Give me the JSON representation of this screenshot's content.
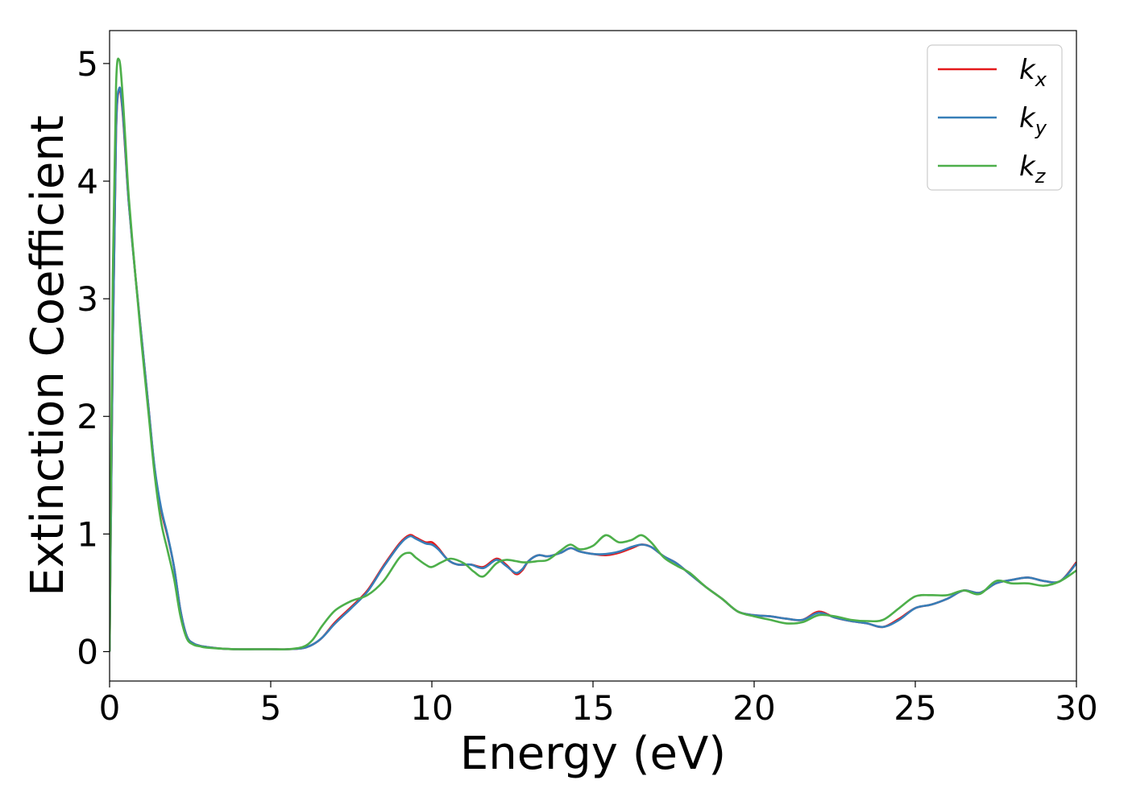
{
  "chart_data": {
    "type": "line",
    "xlabel": "Energy (eV)",
    "ylabel": "Extinction Coefficient",
    "xlim": [
      0,
      30
    ],
    "ylim": [
      -0.25,
      5.28
    ],
    "xticks": [
      0,
      5,
      10,
      15,
      20,
      25,
      30
    ],
    "yticks": [
      0,
      1,
      2,
      3,
      4,
      5
    ],
    "grid": false,
    "legend_position": "top-right",
    "series": [
      {
        "name": "k",
        "subscript": "x",
        "color": "#e41a1c",
        "x": [
          0,
          0.1,
          0.2,
          0.3,
          0.4,
          0.5,
          0.6,
          0.8,
          1.0,
          1.2,
          1.4,
          1.6,
          1.8,
          2.0,
          2.2,
          2.4,
          2.6,
          2.8,
          3.0,
          3.5,
          4,
          4.5,
          5,
          5.5,
          6,
          6.3,
          6.6,
          7,
          7.5,
          8,
          8.5,
          9,
          9.3,
          9.5,
          9.8,
          10,
          10.2,
          10.5,
          10.8,
          11.2,
          11.6,
          12,
          12.3,
          12.6,
          12.8,
          13,
          13.3,
          13.6,
          14,
          14.3,
          14.6,
          15,
          15.4,
          15.8,
          16.2,
          16.5,
          16.8,
          17.2,
          17.6,
          18,
          18.5,
          19,
          19.5,
          20,
          20.5,
          21,
          21.5,
          22,
          22.5,
          23,
          23.5,
          24,
          24.5,
          25,
          25.5,
          26,
          26.5,
          27,
          27.5,
          28,
          28.5,
          29,
          29.5,
          30
        ],
        "values": [
          0,
          2.6,
          4.4,
          4.78,
          4.6,
          4.2,
          3.8,
          3.2,
          2.65,
          2.1,
          1.55,
          1.2,
          0.98,
          0.72,
          0.35,
          0.13,
          0.07,
          0.05,
          0.04,
          0.025,
          0.02,
          0.02,
          0.02,
          0.02,
          0.03,
          0.06,
          0.12,
          0.25,
          0.38,
          0.52,
          0.73,
          0.92,
          0.99,
          0.97,
          0.93,
          0.93,
          0.88,
          0.78,
          0.74,
          0.74,
          0.72,
          0.79,
          0.74,
          0.66,
          0.69,
          0.77,
          0.82,
          0.81,
          0.84,
          0.88,
          0.85,
          0.83,
          0.82,
          0.84,
          0.88,
          0.91,
          0.89,
          0.81,
          0.75,
          0.66,
          0.55,
          0.45,
          0.34,
          0.31,
          0.3,
          0.28,
          0.27,
          0.34,
          0.29,
          0.26,
          0.24,
          0.21,
          0.28,
          0.37,
          0.4,
          0.45,
          0.52,
          0.5,
          0.58,
          0.61,
          0.63,
          0.6,
          0.6,
          0.76
        ]
      },
      {
        "name": "k",
        "subscript": "y",
        "color": "#377eb8",
        "x": [
          0,
          0.1,
          0.2,
          0.3,
          0.4,
          0.5,
          0.6,
          0.8,
          1.0,
          1.2,
          1.4,
          1.6,
          1.8,
          2.0,
          2.2,
          2.4,
          2.6,
          2.8,
          3.0,
          3.5,
          4,
          4.5,
          5,
          5.5,
          6,
          6.3,
          6.6,
          7,
          7.5,
          8,
          8.5,
          9,
          9.3,
          9.5,
          9.8,
          10,
          10.2,
          10.5,
          10.8,
          11.2,
          11.6,
          12,
          12.3,
          12.6,
          12.8,
          13,
          13.3,
          13.6,
          14,
          14.3,
          14.6,
          15,
          15.4,
          15.8,
          16.2,
          16.5,
          16.8,
          17.2,
          17.6,
          18,
          18.5,
          19,
          19.5,
          20,
          20.5,
          21,
          21.5,
          22,
          22.5,
          23,
          23.5,
          24,
          24.5,
          25,
          25.5,
          26,
          26.5,
          27,
          27.5,
          28,
          28.5,
          29,
          29.5,
          30
        ],
        "values": [
          0,
          2.6,
          4.42,
          4.79,
          4.62,
          4.22,
          3.8,
          3.2,
          2.65,
          2.1,
          1.56,
          1.22,
          0.99,
          0.72,
          0.35,
          0.13,
          0.07,
          0.05,
          0.04,
          0.025,
          0.02,
          0.02,
          0.02,
          0.02,
          0.03,
          0.06,
          0.12,
          0.24,
          0.37,
          0.51,
          0.72,
          0.91,
          0.98,
          0.96,
          0.92,
          0.91,
          0.87,
          0.78,
          0.74,
          0.74,
          0.71,
          0.78,
          0.73,
          0.67,
          0.7,
          0.77,
          0.82,
          0.81,
          0.84,
          0.88,
          0.85,
          0.83,
          0.83,
          0.85,
          0.89,
          0.91,
          0.89,
          0.81,
          0.75,
          0.66,
          0.55,
          0.45,
          0.34,
          0.31,
          0.3,
          0.28,
          0.27,
          0.33,
          0.29,
          0.26,
          0.24,
          0.21,
          0.27,
          0.37,
          0.4,
          0.45,
          0.52,
          0.5,
          0.58,
          0.61,
          0.63,
          0.6,
          0.6,
          0.75
        ]
      },
      {
        "name": "k",
        "subscript": "z",
        "color": "#4daf4a",
        "x": [
          0,
          0.1,
          0.2,
          0.3,
          0.4,
          0.5,
          0.6,
          0.8,
          1.0,
          1.2,
          1.4,
          1.6,
          1.8,
          2.0,
          2.2,
          2.4,
          2.6,
          2.8,
          3.0,
          3.5,
          4,
          4.5,
          5,
          5.5,
          6,
          6.3,
          6.6,
          7,
          7.5,
          8,
          8.5,
          9,
          9.3,
          9.5,
          9.8,
          10,
          10.3,
          10.6,
          11,
          11.3,
          11.6,
          12,
          12.3,
          12.6,
          12.8,
          13,
          13.3,
          13.6,
          14,
          14.3,
          14.6,
          15,
          15.4,
          15.8,
          16.2,
          16.5,
          16.8,
          17.2,
          17.6,
          18,
          18.5,
          19,
          19.5,
          20,
          20.5,
          21,
          21.5,
          22,
          22.5,
          23,
          23.5,
          24,
          24.5,
          25,
          25.5,
          26,
          26.5,
          27,
          27.5,
          28,
          28.5,
          29,
          29.5,
          30
        ],
        "values": [
          0,
          3.2,
          4.8,
          5.03,
          4.75,
          4.3,
          3.85,
          3.2,
          2.6,
          2.05,
          1.5,
          1.1,
          0.86,
          0.62,
          0.3,
          0.11,
          0.06,
          0.045,
          0.035,
          0.025,
          0.02,
          0.02,
          0.02,
          0.02,
          0.04,
          0.1,
          0.22,
          0.35,
          0.43,
          0.48,
          0.6,
          0.8,
          0.84,
          0.8,
          0.74,
          0.72,
          0.76,
          0.79,
          0.75,
          0.68,
          0.64,
          0.75,
          0.78,
          0.77,
          0.76,
          0.76,
          0.77,
          0.78,
          0.86,
          0.91,
          0.87,
          0.9,
          0.99,
          0.93,
          0.95,
          0.99,
          0.93,
          0.8,
          0.73,
          0.67,
          0.55,
          0.45,
          0.34,
          0.3,
          0.27,
          0.24,
          0.25,
          0.31,
          0.3,
          0.27,
          0.26,
          0.27,
          0.37,
          0.47,
          0.48,
          0.48,
          0.52,
          0.49,
          0.6,
          0.58,
          0.58,
          0.56,
          0.6,
          0.69
        ]
      }
    ]
  }
}
